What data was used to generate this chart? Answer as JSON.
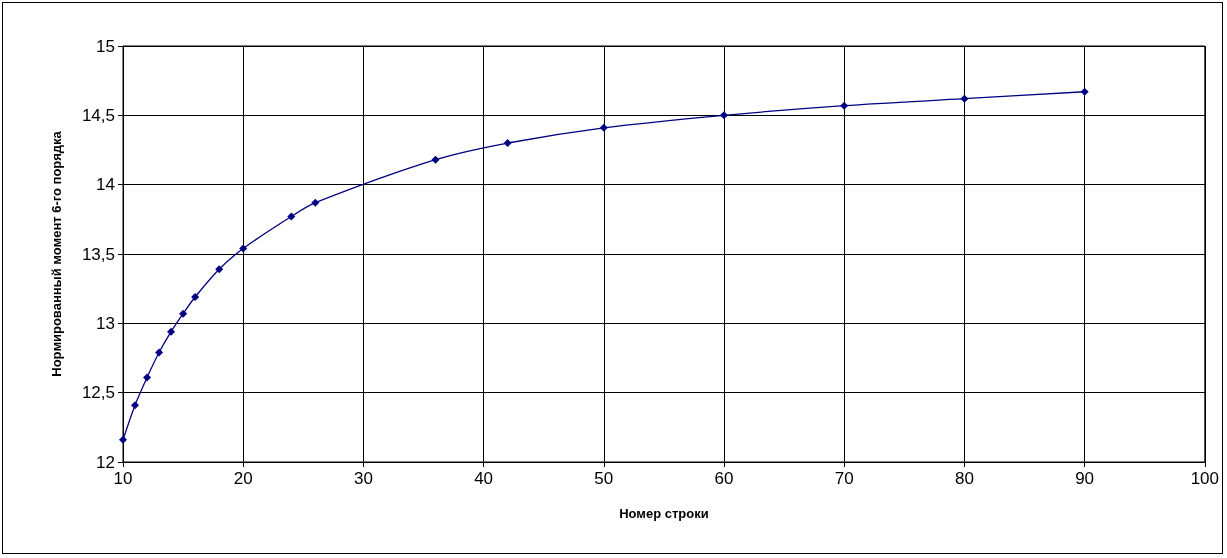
{
  "chart_data": {
    "type": "line",
    "xlabel": "Номер строки",
    "ylabel": "Нормированный момент 6-го порядка",
    "x": [
      10,
      11,
      12,
      13,
      14,
      15,
      16,
      18,
      20,
      24,
      26,
      36,
      42,
      50,
      60,
      70,
      80,
      90
    ],
    "series": [
      {
        "color": "#000080",
        "values": [
          12.16,
          12.41,
          12.61,
          12.79,
          12.94,
          13.07,
          13.19,
          13.39,
          13.54,
          13.77,
          13.87,
          14.18,
          14.3,
          14.41,
          14.5,
          14.57,
          14.62,
          14.67
        ]
      }
    ],
    "xlim": [
      10,
      100
    ],
    "xticks": [
      10,
      20,
      30,
      40,
      50,
      60,
      70,
      80,
      90,
      100
    ],
    "ylim": [
      12,
      15
    ],
    "yticks": [
      12,
      {
        "value": 12.5,
        "label": "12,5"
      },
      13,
      {
        "value": 13.5,
        "label": "13,5"
      },
      14,
      {
        "value": 14.5,
        "label": "14,5"
      },
      15
    ],
    "grid": true,
    "marker": "diamond",
    "line_style": "solid"
  }
}
